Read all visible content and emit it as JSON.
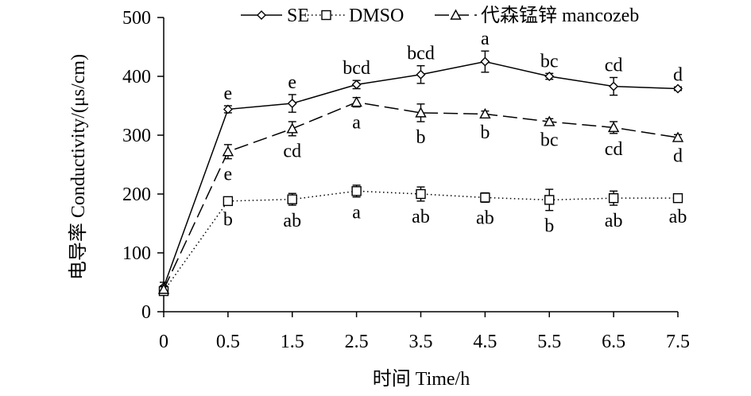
{
  "chart_data": {
    "type": "line",
    "xlabel": "时间 Time/h",
    "ylabel": "电导率 Conductivity/(μs/cm)",
    "x_ticks": [
      "0",
      "0.5",
      "1.5",
      "2.5",
      "3.5",
      "4.5",
      "5.5",
      "6.5",
      "7.5"
    ],
    "y_ticks": [
      "0",
      "100",
      "200",
      "300",
      "400",
      "500"
    ],
    "ylim": [
      0,
      500
    ],
    "grid": false,
    "legend_position": "top-center",
    "series": [
      {
        "name": "SE",
        "marker": "diamond",
        "line_style": "solid",
        "values": [
          42,
          344,
          354,
          386,
          403,
          425,
          400,
          383,
          379
        ],
        "errors": [
          8,
          6,
          15,
          7,
          15,
          18,
          5,
          15,
          3
        ],
        "labels": [
          "",
          "e",
          "e",
          "bcd",
          "bcd",
          "a",
          "bc",
          "cd",
          "d"
        ]
      },
      {
        "name": "DMSO",
        "marker": "square",
        "line_style": "dotted",
        "values": [
          35,
          188,
          191,
          205,
          200,
          194,
          190,
          193,
          193
        ],
        "errors": [
          6,
          5,
          10,
          10,
          12,
          8,
          18,
          12,
          5
        ],
        "labels": [
          "",
          "b",
          "ab",
          "a",
          "ab",
          "ab",
          "b",
          "ab",
          "ab"
        ]
      },
      {
        "name": "代森锰锌 mancozeb",
        "marker": "triangle",
        "line_style": "dashed",
        "values": [
          38,
          272,
          311,
          356,
          338,
          336,
          323,
          313,
          296
        ],
        "errors": [
          6,
          12,
          12,
          8,
          15,
          5,
          5,
          10,
          5
        ],
        "labels": [
          "",
          "e",
          "cd",
          "a",
          "b",
          "b",
          "bc",
          "cd",
          "d"
        ]
      }
    ]
  }
}
